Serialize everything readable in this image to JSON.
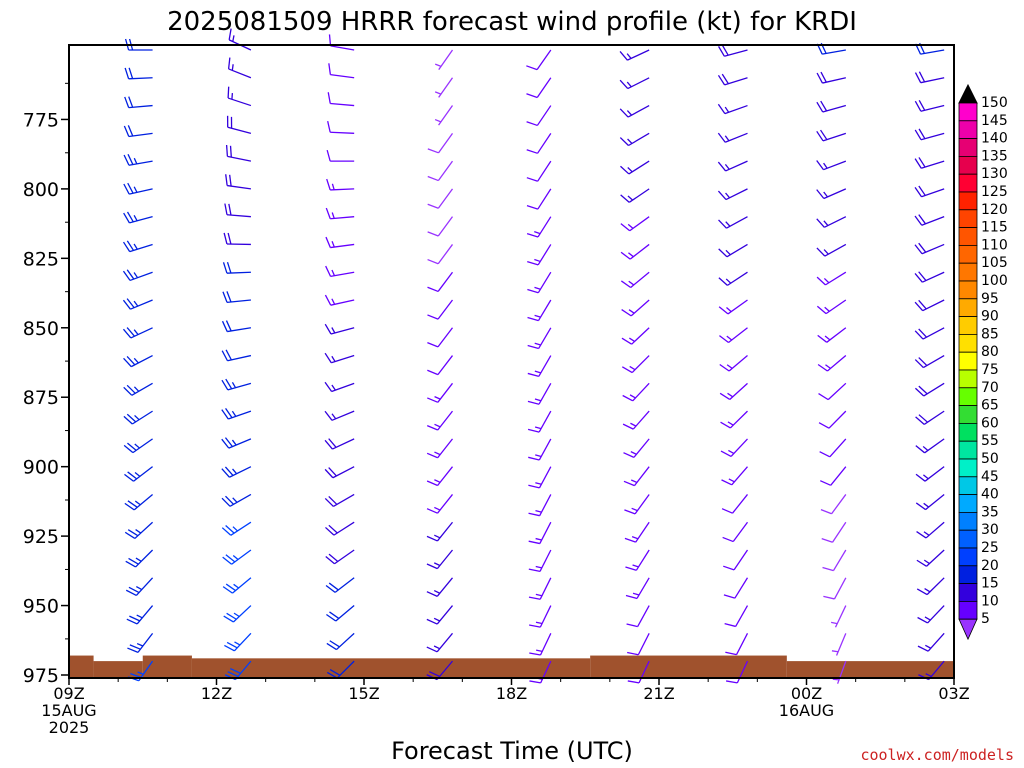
{
  "title": "2025081509 HRRR forecast wind profile (kt) for KRDI",
  "xlabel": "Forecast Time (UTC)",
  "credit": "coolwx.com/models",
  "colors": {
    "terrain": "#A0522D",
    "axis": "#000000",
    "credit": "#cc2222"
  },
  "chart_data": {
    "type": "wind-barb-profile",
    "y_axis": {
      "label": "pressure (hPa)",
      "ticks": [
        775,
        800,
        825,
        850,
        875,
        900,
        925,
        950,
        975
      ],
      "range": [
        975,
        749
      ],
      "levels": [
        750,
        760,
        770,
        780,
        790,
        800,
        810,
        820,
        830,
        840,
        850,
        860,
        870,
        880,
        890,
        900,
        910,
        920,
        930,
        940,
        950,
        960,
        970
      ]
    },
    "x_axis": {
      "range_hours": [
        0,
        18
      ],
      "ticks": [
        {
          "hour": 0,
          "lines": [
            "09Z",
            "15AUG",
            "2025"
          ]
        },
        {
          "hour": 3,
          "lines": [
            "12Z"
          ]
        },
        {
          "hour": 6,
          "lines": [
            "15Z"
          ]
        },
        {
          "hour": 9,
          "lines": [
            "18Z"
          ]
        },
        {
          "hour": 12,
          "lines": [
            "21Z"
          ]
        },
        {
          "hour": 15,
          "lines": [
            "00Z",
            "16AUG"
          ]
        },
        {
          "hour": 18,
          "lines": [
            "03Z"
          ]
        }
      ]
    },
    "columns": [
      {
        "hour": 1.7,
        "time": "11Z",
        "speed_top": 22,
        "dir_top": 270,
        "speed_bottom": 25,
        "dir_bottom": 215
      },
      {
        "hour": 3.7,
        "time": "13Z",
        "speed_top": 16,
        "dir_top": 295,
        "speed_bottom": 28,
        "dir_bottom": 220
      },
      {
        "hour": 5.8,
        "time": "15Z",
        "speed_top": 10,
        "dir_top": 280,
        "speed_bottom": 22,
        "dir_bottom": 225
      },
      {
        "hour": 7.8,
        "time": "17Z",
        "speed_top": 6,
        "dir_top": 215,
        "speed_bottom": 18,
        "dir_bottom": 220
      },
      {
        "hour": 9.8,
        "time": "19Z",
        "speed_top": 12,
        "dir_top": 215,
        "speed_bottom": 14,
        "dir_bottom": 205
      },
      {
        "hour": 11.8,
        "time": "21Z",
        "speed_top": 16,
        "dir_top": 245,
        "speed_bottom": 12,
        "dir_bottom": 205
      },
      {
        "hour": 13.8,
        "time": "23Z",
        "speed_top": 18,
        "dir_top": 255,
        "speed_bottom": 10,
        "dir_bottom": 205
      },
      {
        "hour": 15.8,
        "time": "01Z",
        "speed_top": 20,
        "dir_top": 260,
        "speed_bottom": 6,
        "dir_bottom": 200
      },
      {
        "hour": 17.8,
        "time": "03Z",
        "speed_top": 20,
        "dir_top": 260,
        "speed_bottom": 16,
        "dir_bottom": 220
      }
    ],
    "terrain": [
      {
        "h0": 0,
        "h1": 0.5,
        "p": 968
      },
      {
        "h0": 0.5,
        "h1": 1.5,
        "p": 970
      },
      {
        "h0": 1.5,
        "h1": 2.5,
        "p": 968
      },
      {
        "h0": 2.5,
        "h1": 10.6,
        "p": 969
      },
      {
        "h0": 10.6,
        "h1": 14.6,
        "p": 968
      },
      {
        "h0": 14.6,
        "h1": 18,
        "p": 970
      }
    ],
    "colorbar": {
      "labels": [
        "150",
        "145",
        "140",
        "135",
        "130",
        "125",
        "120",
        "115",
        "110",
        "105",
        "100",
        "95",
        "90",
        "85",
        "80",
        "75",
        "70",
        "65",
        "60",
        "55",
        "50",
        "45",
        "40",
        "35",
        "30",
        "25",
        "20",
        "15",
        "10",
        "5"
      ],
      "colors": [
        "#FF00CC",
        "#EE00AA",
        "#E60073",
        "#E6004D",
        "#FF0033",
        "#FF2200",
        "#FF4400",
        "#FF5500",
        "#FF6600",
        "#FF7700",
        "#FF8800",
        "#FFAA00",
        "#FFCC00",
        "#FFE000",
        "#FFFF00",
        "#B8FF00",
        "#66FF00",
        "#33DD33",
        "#00E060",
        "#00E6A0",
        "#00F0C8",
        "#00C8E6",
        "#00AAFF",
        "#0080FF",
        "#0060FF",
        "#0040FF",
        "#0020E0",
        "#3300DD",
        "#6600FF",
        "#9933FF"
      ],
      "top_cap_color": "#000000"
    }
  }
}
